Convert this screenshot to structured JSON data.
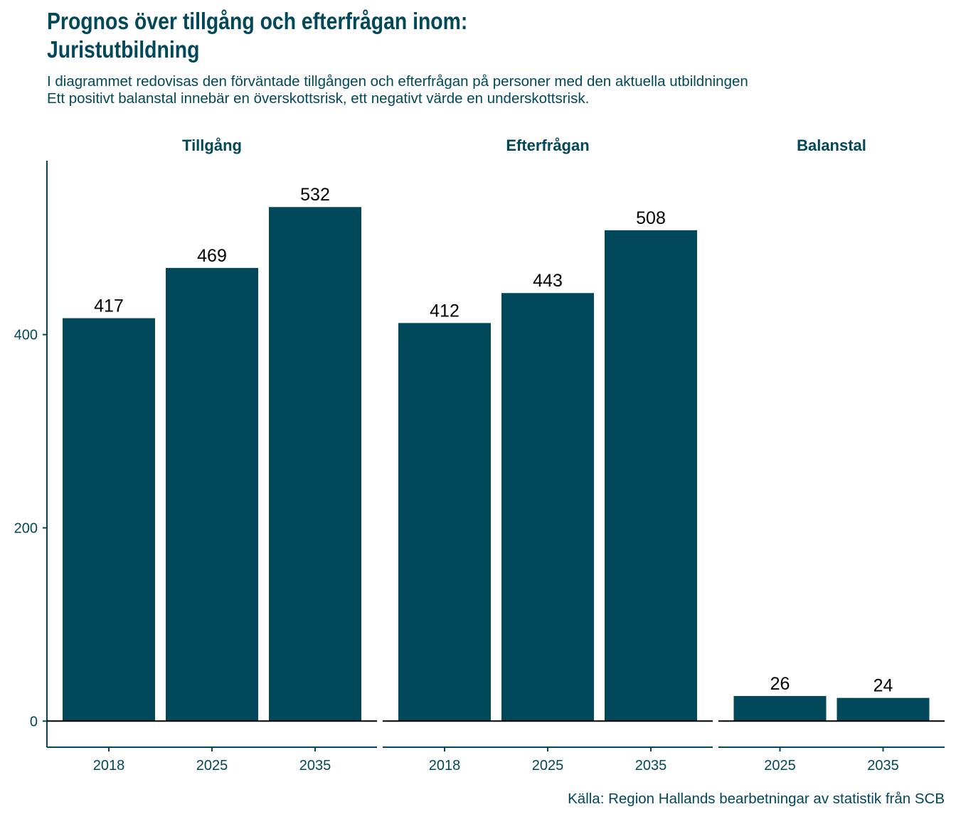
{
  "title_lines": [
    "Prognos över tillgång och efterfrågan inom:",
    "Juristutbildning"
  ],
  "subtitle_lines": [
    "I diagrammet redovisas den förväntade tillgången och efterfrågan på personer med den aktuella utbildningen",
    "Ett positivt balanstal innebär en överskottsrisk, ett negativt värde en underskottsrisk."
  ],
  "caption": "Källa: Region Hallands bearbetningar av statistik från SCB",
  "colors": {
    "bar": "#00485a",
    "text": "#00485a",
    "label": "#000000",
    "axis": "#00485a",
    "zero_line": "#000000"
  },
  "chart_data": {
    "type": "bar",
    "ylim": [
      -27,
      580
    ],
    "y_ticks": [
      0,
      200,
      400
    ],
    "grid": false,
    "legend": "none",
    "facets": [
      {
        "name": "Tillgång",
        "categories": [
          "2018",
          "2025",
          "2035"
        ],
        "values": [
          417,
          469,
          532
        ]
      },
      {
        "name": "Efterfrågan",
        "categories": [
          "2018",
          "2025",
          "2035"
        ],
        "values": [
          412,
          443,
          508
        ]
      },
      {
        "name": "Balanstal",
        "categories": [
          "2025",
          "2035"
        ],
        "values": [
          26,
          24
        ]
      }
    ]
  }
}
